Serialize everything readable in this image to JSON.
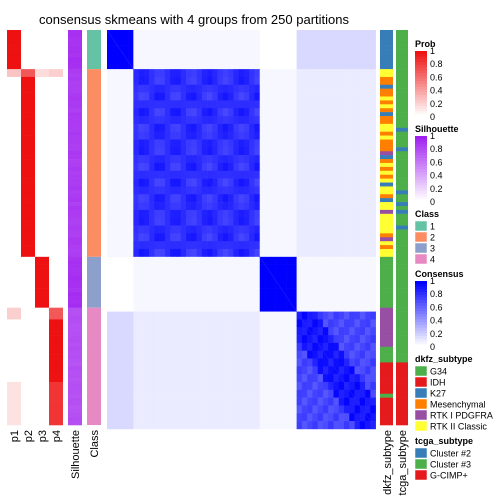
{
  "chart_data": {
    "type": "heatmap",
    "title": "consensus skmeans with 4 groups from 250 partitions",
    "row_blocks": [
      {
        "class": 1,
        "rows": 10,
        "prob": [
          1,
          0,
          0,
          0
        ],
        "silhouette": 0.95
      },
      {
        "class": 2,
        "rows": 48,
        "prob": [
          0,
          1,
          0,
          0
        ],
        "silhouette": 0.9
      },
      {
        "class": 3,
        "rows": 13,
        "prob": [
          0,
          0,
          1,
          0
        ],
        "silhouette": 0.95
      },
      {
        "class": 4,
        "rows": 30,
        "prob": [
          0,
          0,
          0,
          1
        ],
        "silhouette": 0.8
      }
    ],
    "column_labels": [
      "p1",
      "p2",
      "p3",
      "p4",
      "Silhouette",
      "Class",
      "dkfz_subtype",
      "tcga_subtype"
    ],
    "legends": [
      {
        "title": "Prob",
        "type": "continuous",
        "ticks": [
          "1",
          "0.8",
          "0.6",
          "0.4",
          "0.2",
          "0"
        ],
        "low_color": "#ffffff",
        "high_color": "#ee1111"
      },
      {
        "title": "Silhouette",
        "type": "continuous",
        "ticks": [
          "1",
          "0.8",
          "0.6",
          "0.4",
          "0.2",
          "0"
        ],
        "low_color": "#ffffff",
        "high_color": "#a020f0"
      },
      {
        "title": "Class",
        "type": "discrete",
        "items": [
          {
            "label": "1",
            "color": "#66c2a5"
          },
          {
            "label": "2",
            "color": "#fc8d62"
          },
          {
            "label": "3",
            "color": "#8da0cb"
          },
          {
            "label": "4",
            "color": "#e78ac3"
          }
        ]
      },
      {
        "title": "Consensus",
        "type": "continuous",
        "ticks": [
          "1",
          "0.8",
          "0.6",
          "0.4",
          "0.2",
          "0"
        ],
        "low_color": "#ffffff",
        "high_color": "#0000ff"
      },
      {
        "title": "dkfz_subtype",
        "type": "discrete",
        "items": [
          {
            "label": "G34",
            "color": "#4daf4a"
          },
          {
            "label": "IDH",
            "color": "#e41a1c"
          },
          {
            "label": "K27",
            "color": "#377eb8"
          },
          {
            "label": "Mesenchymal",
            "color": "#ff7f00"
          },
          {
            "label": "RTK I PDGFRA",
            "color": "#984ea3"
          },
          {
            "label": "RTK II Classic",
            "color": "#ffff33"
          }
        ]
      },
      {
        "title": "tcga_subtype",
        "type": "discrete",
        "items": [
          {
            "label": "Cluster #2",
            "color": "#377eb8"
          },
          {
            "label": "Cluster #3",
            "color": "#4daf4a"
          },
          {
            "label": "G-CIMP+",
            "color": "#e41a1c"
          }
        ]
      }
    ]
  }
}
